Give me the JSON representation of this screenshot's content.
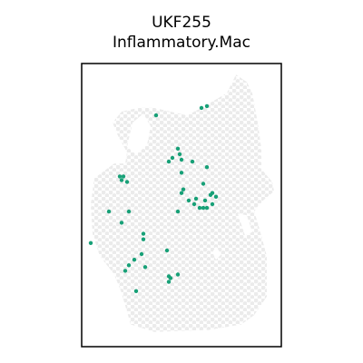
{
  "chart_data": {
    "type": "scatter",
    "title_line1": "UKF255",
    "title_line2": "Inflammatory.Mac",
    "xlabel": "",
    "ylabel": "",
    "grid": false,
    "legend": "none",
    "colors": {
      "background_spots": "#ebebeb",
      "highlight_spots": "#17a077",
      "frame": "#000000"
    },
    "tissue_outline": [
      [
        -1.0,
        7.4
      ],
      [
        0.8,
        7.0
      ],
      [
        1.6,
        7.4
      ],
      [
        3.0,
        8.2
      ],
      [
        3.5,
        9.2
      ],
      [
        4.1,
        8.8
      ],
      [
        4.4,
        8.2
      ],
      [
        4.7,
        6.6
      ],
      [
        4.9,
        5.2
      ],
      [
        4.9,
        4.1
      ],
      [
        5.5,
        3.4
      ],
      [
        5.6,
        2.9
      ],
      [
        5.0,
        2.4
      ],
      [
        4.5,
        1.8
      ],
      [
        4.7,
        1.2
      ],
      [
        5.2,
        -0.6
      ],
      [
        5.2,
        -2.8
      ],
      [
        4.5,
        -3.8
      ],
      [
        3.8,
        -4.3
      ],
      [
        2.0,
        -4.6
      ],
      [
        -1.0,
        -4.7
      ],
      [
        -2.3,
        -4.3
      ],
      [
        -2.8,
        -2.6
      ],
      [
        -3.2,
        -1.6
      ],
      [
        -4.0,
        -0.6
      ],
      [
        -4.4,
        0.6
      ],
      [
        -4.5,
        2.2
      ],
      [
        -4.3,
        3.6
      ],
      [
        -3.2,
        4.4
      ],
      [
        -2.6,
        4.4
      ],
      [
        -2.5,
        5.0
      ],
      [
        -3.0,
        5.9
      ],
      [
        -3.3,
        6.6
      ],
      [
        -2.8,
        7.2
      ],
      [
        -1.9,
        7.4
      ]
    ],
    "tissue_gaps": [
      [
        [
          -2.5,
          5.3
        ],
        [
          -2.2,
          6.6
        ],
        [
          -1.6,
          7.1
        ],
        [
          -1.2,
          6.4
        ],
        [
          -1.4,
          5.4
        ],
        [
          -2.0,
          4.9
        ]
      ],
      [
        [
          3.6,
          1.7
        ],
        [
          4.1,
          1.6
        ],
        [
          4.4,
          0.7
        ],
        [
          4.0,
          0.5
        ]
      ],
      [
        [
          2.2,
          -0.4
        ],
        [
          2.4,
          -0.1
        ],
        [
          2.7,
          -0.5
        ],
        [
          2.4,
          -0.8
        ]
      ]
    ],
    "highlight_spots": [
      [
        -0.9,
        7.0
      ],
      [
        1.6,
        7.4
      ],
      [
        1.9,
        7.5
      ],
      [
        0.3,
        5.2
      ],
      [
        0.4,
        4.9
      ],
      [
        0.5,
        4.6
      ],
      [
        0.0,
        4.7
      ],
      [
        -0.2,
        4.5
      ],
      [
        1.1,
        4.5
      ],
      [
        0.5,
        3.9
      ],
      [
        1.9,
        4.2
      ],
      [
        0.5,
        2.8
      ],
      [
        0.6,
        3.0
      ],
      [
        0.9,
        2.4
      ],
      [
        1.2,
        2.2
      ],
      [
        1.5,
        2.0
      ],
      [
        1.7,
        2.0
      ],
      [
        1.9,
        2.0
      ],
      [
        1.8,
        2.4
      ],
      [
        1.3,
        2.5
      ],
      [
        2.2,
        2.2
      ],
      [
        2.1,
        2.7
      ],
      [
        2.2,
        2.8
      ],
      [
        1.7,
        3.3
      ],
      [
        2.4,
        2.6
      ],
      [
        -2.9,
        3.7
      ],
      [
        -2.7,
        3.7
      ],
      [
        -2.8,
        3.5
      ],
      [
        -2.5,
        3.4
      ],
      [
        -3.5,
        1.8
      ],
      [
        -2.4,
        1.8
      ],
      [
        -2.8,
        1.2
      ],
      [
        0.3,
        1.8
      ],
      [
        -4.5,
        0.1
      ],
      [
        -1.6,
        0.6
      ],
      [
        -1.6,
        0.3
      ],
      [
        -0.3,
        -0.3
      ],
      [
        -1.7,
        -0.5
      ],
      [
        -2.1,
        -0.8
      ],
      [
        -1.5,
        -1.2
      ],
      [
        -2.4,
        -1.1
      ],
      [
        -2.6,
        -1.4
      ],
      [
        -0.2,
        -1.7
      ],
      [
        -0.1,
        -1.8
      ],
      [
        -0.2,
        -2.0
      ],
      [
        0.3,
        -1.6
      ],
      [
        -2.0,
        -2.5
      ]
    ],
    "xlim": [
      -5.0,
      6.0
    ],
    "ylim": [
      -5.5,
      9.8
    ]
  }
}
